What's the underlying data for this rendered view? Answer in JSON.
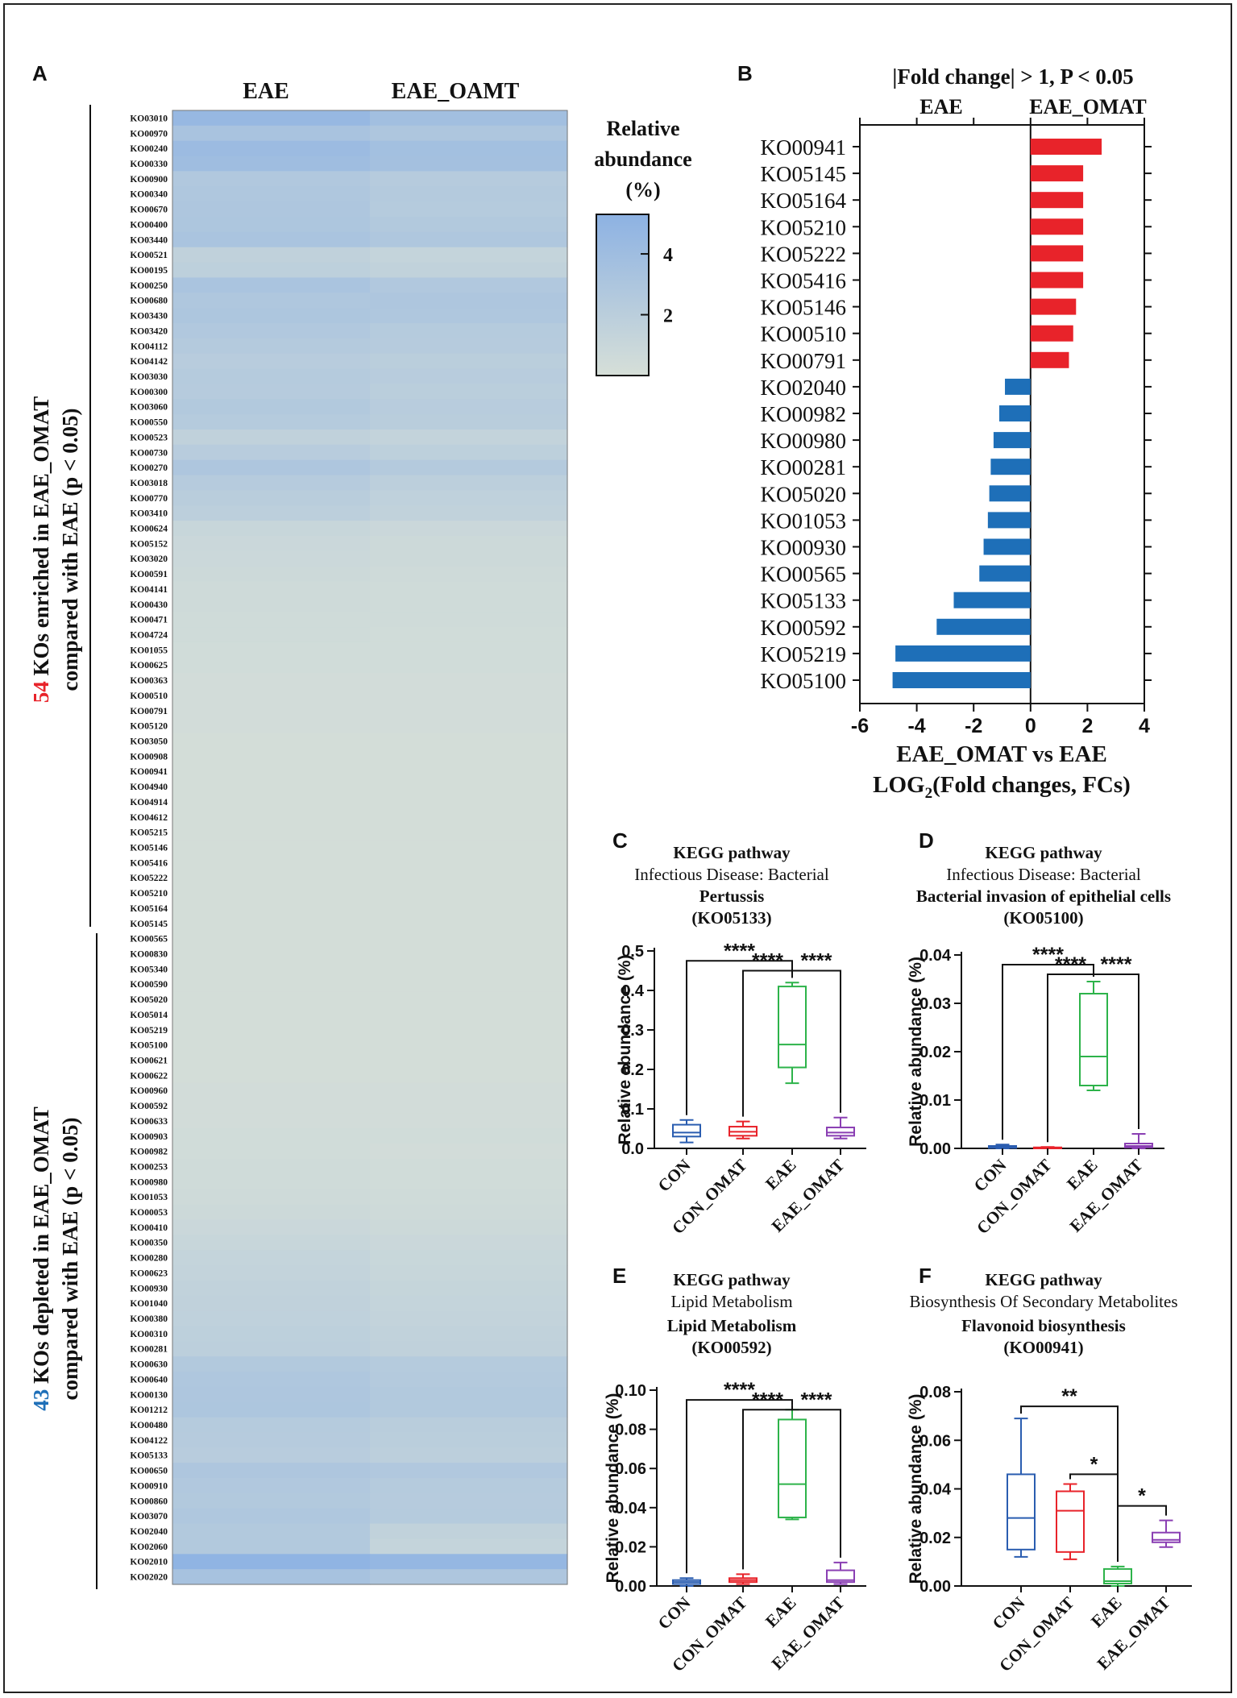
{
  "panels": {
    "A": {
      "letter": "A",
      "col_labels": [
        "EAE",
        "EAE_OAMT"
      ],
      "legend": {
        "title_lines": [
          "Relative",
          "abundance",
          "(%)"
        ],
        "ticks": [
          4,
          2
        ],
        "scale_max": 5.3
      },
      "side_label_enriched": {
        "count": "54",
        "line1": "KOs enriched in EAE_OMAT",
        "line2": "compared with EAE (p < 0.05)"
      },
      "side_label_depleted": {
        "count": "43",
        "line1": "KOs depleted in EAE_OMAT",
        "line2": "compared with EAE (p < 0.05)"
      },
      "colors": {
        "count_enriched": "#e8232a",
        "count_depleted": "#1e6fb8",
        "low": "#d6dfd8",
        "high": "#8db2e3"
      }
    },
    "B": {
      "letter": "B"
    },
    "C": {
      "letter": "C",
      "line1": "KEGG pathway",
      "line2": "Infectious Disease: Bacterial",
      "line3": "Pertussis",
      "line4": "(KO05133)"
    },
    "D": {
      "letter": "D",
      "line1": "KEGG pathway",
      "line2": "Infectious Disease: Bacterial",
      "line3": "Bacterial invasion of epithelial cells",
      "line4": "(KO05100)"
    },
    "E": {
      "letter": "E",
      "line1": "KEGG pathway",
      "line2": "Lipid Metabolism",
      "line3": "Lipid Metabolism",
      "line4": "(KO00592)"
    },
    "F": {
      "letter": "F",
      "line1": "KEGG pathway",
      "line2": "Biosynthesis Of Secondary Metabolites",
      "line3": "Flavonoid biosynthesis",
      "line4": "(KO00941)"
    }
  },
  "chart_data": [
    {
      "type": "heatmap",
      "columns": [
        "EAE",
        "EAE_OAMT"
      ],
      "rows": [
        "KO03010",
        "KO00970",
        "KO00240",
        "KO00330",
        "KO00900",
        "KO00340",
        "KO00670",
        "KO00400",
        "KO03440",
        "KO00521",
        "KO00195",
        "KO00250",
        "KO00680",
        "KO03430",
        "KO03420",
        "KO04112",
        "KO04142",
        "KO03030",
        "KO00300",
        "KO03060",
        "KO00550",
        "KO00523",
        "KO00730",
        "KO00270",
        "KO03018",
        "KO00770",
        "KO03410",
        "KO00624",
        "KO05152",
        "KO03020",
        "KO00591",
        "KO04141",
        "KO00430",
        "KO00471",
        "KO04724",
        "KO01055",
        "KO00625",
        "KO00363",
        "KO00510",
        "KO00791",
        "KO05120",
        "KO03050",
        "KO00908",
        "KO00941",
        "KO04940",
        "KO04914",
        "KO04612",
        "KO05215",
        "KO05146",
        "KO05416",
        "KO05222",
        "KO05210",
        "KO05164",
        "KO05145",
        "KO00565",
        "KO00830",
        "KO05340",
        "KO00590",
        "KO05020",
        "KO05014",
        "KO05219",
        "KO05100",
        "KO00621",
        "KO00622",
        "KO00960",
        "KO00592",
        "KO00633",
        "KO00903",
        "KO00982",
        "KO00253",
        "KO00980",
        "KO01053",
        "KO00053",
        "KO00410",
        "KO00350",
        "KO00280",
        "KO00623",
        "KO00930",
        "KO01040",
        "KO00380",
        "KO00310",
        "KO00281",
        "KO00630",
        "KO00640",
        "KO00130",
        "KO01212",
        "KO00480",
        "KO04122",
        "KO05133",
        "KO00650",
        "KO00910",
        "KO00860",
        "KO03070",
        "KO02040",
        "KO02060",
        "KO02010",
        "KO02020"
      ],
      "values": [
        [
          4.6,
          3.8
        ],
        [
          3.3,
          2.9
        ],
        [
          4.2,
          3.7
        ],
        [
          4.0,
          3.6
        ],
        [
          2.7,
          2.3
        ],
        [
          2.8,
          2.5
        ],
        [
          2.9,
          2.4
        ],
        [
          3.0,
          2.6
        ],
        [
          3.2,
          2.8
        ],
        [
          1.6,
          1.3
        ],
        [
          1.8,
          1.5
        ],
        [
          3.2,
          2.7
        ],
        [
          2.8,
          2.9
        ],
        [
          3.0,
          2.8
        ],
        [
          2.7,
          2.4
        ],
        [
          2.5,
          2.3
        ],
        [
          2.2,
          2.0
        ],
        [
          2.4,
          2.2
        ],
        [
          2.3,
          2.0
        ],
        [
          2.6,
          2.2
        ],
        [
          2.4,
          2.1
        ],
        [
          1.6,
          1.4
        ],
        [
          2.2,
          1.8
        ],
        [
          2.9,
          2.5
        ],
        [
          2.3,
          1.9
        ],
        [
          2.1,
          1.7
        ],
        [
          1.9,
          1.5
        ],
        [
          1.1,
          0.9
        ],
        [
          0.9,
          0.7
        ],
        [
          0.8,
          0.7
        ],
        [
          0.7,
          0.6
        ],
        [
          0.6,
          0.5
        ],
        [
          0.6,
          0.5
        ],
        [
          0.5,
          0.5
        ],
        [
          0.5,
          0.4
        ],
        [
          0.4,
          0.4
        ],
        [
          0.4,
          0.4
        ],
        [
          0.3,
          0.3
        ],
        [
          0.3,
          0.3
        ],
        [
          0.3,
          0.3
        ],
        [
          0.3,
          0.3
        ],
        [
          0.2,
          0.2
        ],
        [
          0.2,
          0.2
        ],
        [
          0.2,
          0.2
        ],
        [
          0.2,
          0.2
        ],
        [
          0.2,
          0.2
        ],
        [
          0.2,
          0.2
        ],
        [
          0.2,
          0.2
        ],
        [
          0.2,
          0.2
        ],
        [
          0.2,
          0.2
        ],
        [
          0.2,
          0.2
        ],
        [
          0.2,
          0.2
        ],
        [
          0.2,
          0.2
        ],
        [
          0.2,
          0.2
        ],
        [
          0.2,
          0.2
        ],
        [
          0.2,
          0.2
        ],
        [
          0.2,
          0.2
        ],
        [
          0.2,
          0.2
        ],
        [
          0.2,
          0.2
        ],
        [
          0.2,
          0.2
        ],
        [
          0.2,
          0.2
        ],
        [
          0.2,
          0.2
        ],
        [
          0.2,
          0.2
        ],
        [
          0.2,
          0.2
        ],
        [
          0.3,
          0.3
        ],
        [
          0.3,
          0.3
        ],
        [
          0.3,
          0.3
        ],
        [
          0.4,
          0.4
        ],
        [
          0.4,
          0.3
        ],
        [
          0.5,
          0.4
        ],
        [
          0.5,
          0.4
        ],
        [
          0.6,
          0.5
        ],
        [
          0.7,
          0.6
        ],
        [
          0.9,
          0.7
        ],
        [
          1.1,
          0.9
        ],
        [
          1.3,
          1.0
        ],
        [
          1.4,
          1.1
        ],
        [
          1.5,
          1.2
        ],
        [
          1.6,
          1.3
        ],
        [
          1.7,
          1.4
        ],
        [
          1.8,
          1.5
        ],
        [
          1.9,
          1.6
        ],
        [
          2.6,
          2.4
        ],
        [
          2.8,
          2.5
        ],
        [
          2.9,
          2.6
        ],
        [
          3.0,
          2.6
        ],
        [
          2.4,
          2.1
        ],
        [
          2.3,
          2.0
        ],
        [
          2.2,
          1.9
        ],
        [
          2.9,
          2.7
        ],
        [
          2.7,
          2.4
        ],
        [
          2.6,
          2.3
        ],
        [
          2.8,
          2.4
        ],
        [
          2.6,
          1.5
        ],
        [
          2.6,
          1.3
        ],
        [
          5.1,
          4.7
        ],
        [
          3.4,
          2.9
        ]
      ],
      "value_units": "Relative abundance (%)"
    },
    {
      "type": "bar",
      "orientation": "horizontal",
      "title": "|Fold change| > 1, P < 0.05",
      "top_labels": [
        "EAE",
        "EAE_OMAT"
      ],
      "xlabel_line1": "EAE_OMAT vs EAE",
      "xlabel_line2_pre": "LOG",
      "xlabel_line2_sub": "2",
      "xlabel_line2_post": "(Fold changes, FCs)",
      "xlim": [
        -6,
        4
      ],
      "xticks": [
        -6,
        -4,
        -2,
        0,
        2,
        4
      ],
      "colors": {
        "positive": "#e8232a",
        "negative": "#1e6fb8"
      },
      "categories": [
        "KO00941",
        "KO05145",
        "KO05164",
        "KO05210",
        "KO05222",
        "KO05416",
        "KO05146",
        "KO00510",
        "KO00791",
        "KO02040",
        "KO00982",
        "KO00980",
        "KO00281",
        "KO05020",
        "KO01053",
        "KO00930",
        "KO00565",
        "KO05133",
        "KO00592",
        "KO05219",
        "KO05100"
      ],
      "values": [
        2.5,
        1.85,
        1.85,
        1.85,
        1.85,
        1.85,
        1.6,
        1.5,
        1.35,
        -0.9,
        -1.1,
        -1.3,
        -1.4,
        -1.45,
        -1.5,
        -1.65,
        -1.8,
        -2.7,
        -3.3,
        -4.75,
        -4.85
      ]
    },
    {
      "type": "box",
      "panel": "C",
      "categories": [
        "CON",
        "CON_OMAT",
        "EAE",
        "EAE_OMAT"
      ],
      "colors": [
        "#2a5db0",
        "#e8232a",
        "#2db34a",
        "#8a3fb3"
      ],
      "ylabel": "Relative abundance (%)",
      "ylim": [
        0,
        0.5
      ],
      "yticks": [
        0.0,
        0.1,
        0.2,
        0.3,
        0.4,
        0.5
      ],
      "tick_decimals": 1,
      "boxes": [
        {
          "min": 0.015,
          "q1": 0.03,
          "median": 0.04,
          "q3": 0.06,
          "max": 0.072
        },
        {
          "min": 0.025,
          "q1": 0.032,
          "median": 0.042,
          "q3": 0.055,
          "max": 0.068
        },
        {
          "min": 0.165,
          "q1": 0.205,
          "median": 0.263,
          "q3": 0.41,
          "max": 0.42
        },
        {
          "min": 0.025,
          "q1": 0.032,
          "median": 0.04,
          "q3": 0.053,
          "max": 0.078
        }
      ],
      "significance": [
        {
          "from": 0,
          "to": 2,
          "label": "****",
          "y": 0.475
        },
        {
          "from": 1,
          "to": 2,
          "label": "****",
          "y": 0.45
        },
        {
          "from": 2,
          "to": 3,
          "label": "****",
          "y": 0.45
        }
      ]
    },
    {
      "type": "box",
      "panel": "D",
      "categories": [
        "CON",
        "CON_OMAT",
        "EAE",
        "EAE_OMAT"
      ],
      "colors": [
        "#2a5db0",
        "#e8232a",
        "#2db34a",
        "#8a3fb3"
      ],
      "ylabel": "Relative abundance (%)",
      "ylim": [
        0,
        0.04
      ],
      "yticks": [
        0.0,
        0.01,
        0.02,
        0.03,
        0.04
      ],
      "tick_decimals": 2,
      "boxes": [
        {
          "min": 0.0,
          "q1": 0.0001,
          "median": 0.0003,
          "q3": 0.0005,
          "max": 0.0008
        },
        {
          "min": 0.0,
          "q1": 0.0,
          "median": 0.0001,
          "q3": 0.0002,
          "max": 0.0003
        },
        {
          "min": 0.012,
          "q1": 0.013,
          "median": 0.019,
          "q3": 0.032,
          "max": 0.0345
        },
        {
          "min": 0.0,
          "q1": 0.0002,
          "median": 0.0005,
          "q3": 0.001,
          "max": 0.003
        }
      ],
      "significance": [
        {
          "from": 0,
          "to": 2,
          "label": "****",
          "y": 0.038
        },
        {
          "from": 1,
          "to": 2,
          "label": "****",
          "y": 0.036
        },
        {
          "from": 2,
          "to": 3,
          "label": "****",
          "y": 0.036
        }
      ]
    },
    {
      "type": "box",
      "panel": "E",
      "categories": [
        "CON",
        "CON_OMAT",
        "EAE",
        "EAE_OMAT"
      ],
      "colors": [
        "#2a5db0",
        "#e8232a",
        "#2db34a",
        "#8a3fb3"
      ],
      "ylabel": "Relative abundance (%)",
      "ylim": [
        0,
        0.1
      ],
      "yticks": [
        0.0,
        0.02,
        0.04,
        0.06,
        0.08,
        0.1
      ],
      "tick_decimals": 2,
      "boxes": [
        {
          "min": 0.0,
          "q1": 0.001,
          "median": 0.002,
          "q3": 0.003,
          "max": 0.004
        },
        {
          "min": 0.001,
          "q1": 0.002,
          "median": 0.003,
          "q3": 0.004,
          "max": 0.006
        },
        {
          "min": 0.034,
          "q1": 0.035,
          "median": 0.052,
          "q3": 0.085,
          "max": 0.09
        },
        {
          "min": 0.001,
          "q1": 0.002,
          "median": 0.003,
          "q3": 0.008,
          "max": 0.012
        }
      ],
      "significance": [
        {
          "from": 0,
          "to": 2,
          "label": "****",
          "y": 0.095
        },
        {
          "from": 1,
          "to": 2,
          "label": "****",
          "y": 0.09
        },
        {
          "from": 2,
          "to": 3,
          "label": "****",
          "y": 0.09
        }
      ]
    },
    {
      "type": "box",
      "panel": "F",
      "categories": [
        "CON",
        "CON_OMAT",
        "EAE",
        "EAE_OMAT"
      ],
      "colors": [
        "#2a5db0",
        "#e8232a",
        "#2db34a",
        "#8a3fb3"
      ],
      "ylabel": "Relative abundance (%)",
      "ylim": [
        0,
        0.08
      ],
      "yticks": [
        0.0,
        0.02,
        0.04,
        0.06,
        0.08
      ],
      "tick_decimals": 2,
      "boxes": [
        {
          "min": 0.012,
          "q1": 0.015,
          "median": 0.028,
          "q3": 0.046,
          "max": 0.069
        },
        {
          "min": 0.011,
          "q1": 0.014,
          "median": 0.031,
          "q3": 0.039,
          "max": 0.042
        },
        {
          "min": 0.0,
          "q1": 0.001,
          "median": 0.002,
          "q3": 0.007,
          "max": 0.008
        },
        {
          "min": 0.016,
          "q1": 0.018,
          "median": 0.019,
          "q3": 0.022,
          "max": 0.027
        }
      ],
      "significance": [
        {
          "from": 0,
          "to": 2,
          "label": "**",
          "y": 0.074
        },
        {
          "from": 1,
          "to": 2,
          "label": "*",
          "y": 0.046
        },
        {
          "from": 2,
          "to": 3,
          "label": "*",
          "y": 0.033
        }
      ]
    }
  ]
}
